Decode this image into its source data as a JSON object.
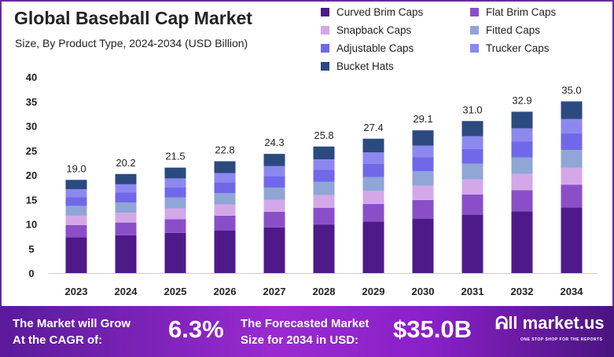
{
  "chart_data": {
    "type": "bar",
    "stacked": true,
    "title": "Global Baseball Cap Market",
    "subtitle": "Size, By Product Type, 2024-2034 (USD Billion)",
    "categories": [
      "2023",
      "2024",
      "2025",
      "2026",
      "2027",
      "2028",
      "2029",
      "2030",
      "2031",
      "2032",
      "2034"
    ],
    "totals": [
      "19.0",
      "20.2",
      "21.5",
      "22.8",
      "24.3",
      "25.8",
      "27.4",
      "29.1",
      "31.0",
      "32.9",
      "35.0"
    ],
    "ylim": [
      0,
      40
    ],
    "yticks": [
      0,
      5,
      10,
      15,
      20,
      25,
      30,
      35,
      40
    ],
    "grid": false,
    "legend": "top-right",
    "series": [
      {
        "name": "Curved Brim Caps",
        "color": "#4e1a8a",
        "values": [
          7.3,
          7.7,
          8.2,
          8.7,
          9.3,
          9.9,
          10.5,
          11.1,
          11.9,
          12.6,
          13.4
        ]
      },
      {
        "name": "Flat Brim Caps",
        "color": "#8a4fc8",
        "values": [
          2.5,
          2.6,
          2.8,
          3.0,
          3.2,
          3.4,
          3.6,
          3.8,
          4.1,
          4.3,
          4.6
        ]
      },
      {
        "name": "Snapback Caps",
        "color": "#d4a8e8",
        "values": [
          1.9,
          2.0,
          2.2,
          2.3,
          2.4,
          2.6,
          2.7,
          2.9,
          3.1,
          3.3,
          3.5
        ]
      },
      {
        "name": "Fitted Caps",
        "color": "#8fa6d6",
        "values": [
          2.0,
          2.1,
          2.2,
          2.3,
          2.5,
          2.7,
          2.8,
          3.0,
          3.2,
          3.4,
          3.6
        ]
      },
      {
        "name": "Adjustable Caps",
        "color": "#7068e8",
        "values": [
          1.8,
          2.0,
          2.1,
          2.2,
          2.4,
          2.5,
          2.7,
          2.8,
          3.0,
          3.2,
          3.4
        ]
      },
      {
        "name": "Trucker Caps",
        "color": "#8c88f0",
        "values": [
          1.6,
          1.7,
          1.8,
          1.9,
          2.0,
          2.1,
          2.3,
          2.4,
          2.6,
          2.7,
          2.9
        ]
      },
      {
        "name": "Bucket Hats",
        "color": "#2b4a80",
        "values": [
          1.9,
          2.1,
          2.2,
          2.4,
          2.5,
          2.6,
          2.8,
          3.1,
          3.1,
          3.4,
          3.6
        ]
      }
    ]
  },
  "footer": {
    "cagr_text1": "The Market will Grow",
    "cagr_text2": "At the CAGR of:",
    "cagr_value": "6.3%",
    "forecast_text1": "The Forecasted Market",
    "forecast_text2": "Size for 2034 in USD:",
    "forecast_value": "$35.0B",
    "logo": "market.us",
    "tagline": "ONE STOP SHOP FOR THE REPORTS"
  }
}
